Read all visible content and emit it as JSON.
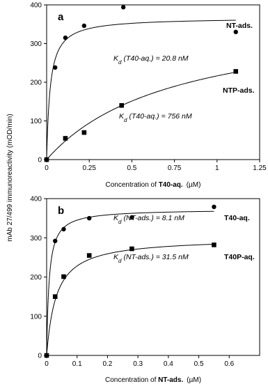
{
  "figure": {
    "ylabel": "mAb 27/499 immunoreactivity (mOD/min)"
  },
  "chart_data": [
    {
      "type": "scatter",
      "panel": "a",
      "xlabel": {
        "prefix": "Concentration of ",
        "bold": "T40-aq.",
        "unit": "(µM)"
      },
      "xlim": [
        0,
        1.25
      ],
      "ylim": [
        0,
        400
      ],
      "xticks": [
        "0",
        "0.25",
        "0.5",
        "0.75",
        "1",
        "1.25"
      ],
      "yticks": [
        "0",
        "100",
        "200",
        "300",
        "400"
      ],
      "series": [
        {
          "name": "NT-ads.",
          "marker": "circle",
          "points": [
            [
              0,
              0
            ],
            [
              0.05,
              238
            ],
            [
              0.11,
              315
            ],
            [
              0.22,
              346
            ],
            [
              0.45,
              394
            ],
            [
              1.11,
              330
            ]
          ],
          "fit_kd": 0.0208,
          "fit_bmax": 367
        },
        {
          "name": "NTP-ads.",
          "marker": "square",
          "points": [
            [
              0,
              0
            ],
            [
              0.11,
              55
            ],
            [
              0.22,
              70
            ],
            [
              0.44,
              140
            ],
            [
              1.11,
              228
            ]
          ],
          "fit_kd": 0.756,
          "fit_bmax": 380
        }
      ],
      "annotations": [
        {
          "k": "K",
          "sub": "d",
          "text": "(T40-aq.)  =  20.8 nM"
        },
        {
          "k": "K",
          "sub": "d",
          "text": "(T40-aq.)  =  756 nM"
        }
      ]
    },
    {
      "type": "scatter",
      "panel": "b",
      "xlabel": {
        "prefix": "Concentration of ",
        "bold": "NT-ads.",
        "unit": "(µM)"
      },
      "xlim": [
        0,
        0.7
      ],
      "ylim": [
        0,
        400
      ],
      "xticks": [
        "0",
        "0.1",
        "0.2",
        "0.3",
        "0.4",
        "0.5",
        "0.6"
      ],
      "yticks": [
        "0",
        "100",
        "200",
        "300",
        "400"
      ],
      "series": [
        {
          "name": "T40-aq.",
          "marker": "circle",
          "points": [
            [
              0,
              0
            ],
            [
              0.028,
              292
            ],
            [
              0.056,
              322
            ],
            [
              0.14,
              350
            ],
            [
              0.28,
              352
            ],
            [
              0.55,
              379
            ]
          ],
          "fit_kd": 0.0081,
          "fit_bmax": 373
        },
        {
          "name": "T40P-aq.",
          "marker": "square",
          "points": [
            [
              0,
              0
            ],
            [
              0.028,
              150
            ],
            [
              0.056,
              201
            ],
            [
              0.14,
              255
            ],
            [
              0.28,
              272
            ],
            [
              0.55,
              282
            ]
          ],
          "fit_kd": 0.0315,
          "fit_bmax": 300
        }
      ],
      "annotations": [
        {
          "k": "K",
          "sub": "d",
          "text": "(NT-ads.)  =  8.1 nM"
        },
        {
          "k": "K",
          "sub": "d",
          "text": "(NT-ads.)  =  31.5 nM"
        }
      ]
    }
  ]
}
